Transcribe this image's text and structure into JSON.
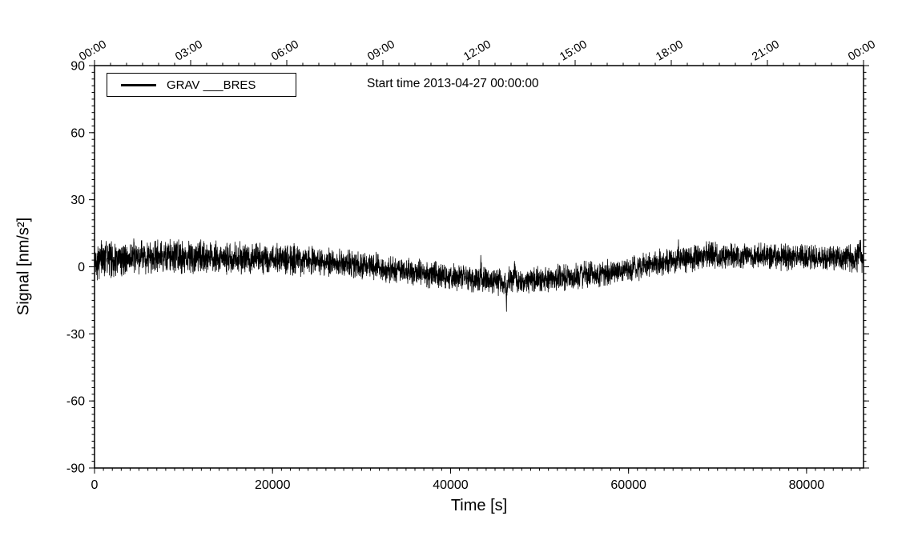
{
  "chart_data": {
    "type": "line",
    "title": "Start time 2013-04-27 00:00:00",
    "xlabel": "Time [s]",
    "ylabel": "Signal [nm/s²]",
    "xlim": [
      0,
      86400
    ],
    "ylim": [
      -90,
      90
    ],
    "grid": false,
    "legend": {
      "label": "GRAV ___BRES",
      "position": "top-left",
      "line_color": "#000000"
    },
    "axes": {
      "y_major_ticks": [
        -90,
        -60,
        -30,
        0,
        30,
        60,
        90
      ],
      "y_minor_step": 3,
      "x_bottom_major_ticks": [
        0,
        20000,
        40000,
        60000,
        80000
      ],
      "x_bottom_minor_step": 1000,
      "x_top_major_ticks": [
        {
          "t": 0,
          "label": "00:00"
        },
        {
          "t": 10800,
          "label": "03:00"
        },
        {
          "t": 21600,
          "label": "06:00"
        },
        {
          "t": 32400,
          "label": "09:00"
        },
        {
          "t": 43200,
          "label": "12:00"
        },
        {
          "t": 54000,
          "label": "15:00"
        },
        {
          "t": 64800,
          "label": "18:00"
        },
        {
          "t": 75600,
          "label": "21:00"
        },
        {
          "t": 86400,
          "label": "00:00"
        }
      ],
      "x_top_minor_step": 1800,
      "x_top_label_rotation": -30
    },
    "series": [
      {
        "name": "GRAV ___BRES",
        "color": "#000000",
        "description": "high-frequency noisy gravity residual band centered near 0, dipping to about -7 near midday and recovering to about +5 in the evening",
        "trend": [
          [
            0,
            3
          ],
          [
            4000,
            4
          ],
          [
            9000,
            4.5
          ],
          [
            15000,
            4
          ],
          [
            21000,
            3.5
          ],
          [
            25000,
            2.5
          ],
          [
            29000,
            1
          ],
          [
            33000,
            -1
          ],
          [
            38000,
            -3.5
          ],
          [
            42000,
            -5.5
          ],
          [
            45000,
            -6.5
          ],
          [
            48000,
            -6
          ],
          [
            52000,
            -5
          ],
          [
            56000,
            -3.5
          ],
          [
            60000,
            -1
          ],
          [
            63000,
            1.5
          ],
          [
            66000,
            3.5
          ],
          [
            69000,
            5
          ],
          [
            74000,
            5
          ],
          [
            79000,
            4
          ],
          [
            86400,
            4
          ]
        ],
        "noise_halfwidth": [
          [
            0,
            10
          ],
          [
            3000,
            9
          ],
          [
            8000,
            8.5
          ],
          [
            15000,
            8
          ],
          [
            22000,
            8
          ],
          [
            30000,
            7
          ],
          [
            40000,
            6.5
          ],
          [
            47000,
            7
          ],
          [
            55000,
            6.5
          ],
          [
            62000,
            6.5
          ],
          [
            68000,
            7
          ],
          [
            75000,
            6.5
          ],
          [
            82000,
            6.5
          ],
          [
            86400,
            7.5
          ]
        ],
        "spikes": [
          [
            1300,
            6
          ],
          [
            2600,
            -5
          ],
          [
            43400,
            7
          ],
          [
            46300,
            -9
          ],
          [
            47200,
            5
          ],
          [
            65600,
            5
          ],
          [
            86000,
            5
          ]
        ],
        "samples": 5000,
        "seed": 42
      }
    ]
  }
}
